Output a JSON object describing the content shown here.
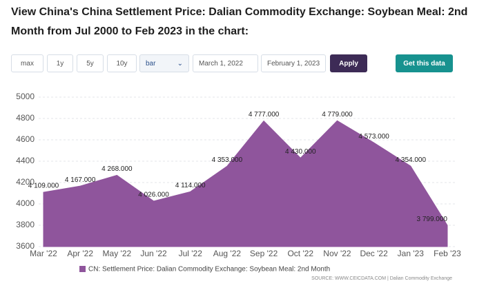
{
  "header": {
    "title": "View China's China Settlement Price: Dalian Commodity Exchange: Soybean Meal: 2nd Month from Jul 2000 to Feb 2023 in the chart:"
  },
  "controls": {
    "ranges": [
      "max",
      "1y",
      "5y",
      "10y"
    ],
    "chart_type": "bar",
    "start_date": "March 1, 2022",
    "end_date": "February 1, 2023",
    "apply": "Apply",
    "get_data": "Get this data"
  },
  "chart_data": {
    "type": "area",
    "categories": [
      "Mar '22",
      "Apr '22",
      "May '22",
      "Jun '22",
      "Jul '22",
      "Aug '22",
      "Sep '22",
      "Oct '22",
      "Nov '22",
      "Dec '22",
      "Jan '23",
      "Feb '23"
    ],
    "series": [
      {
        "name": "CN: Settlement Price: Dalian Commodity Exchange: Soybean Meal: 2nd Month",
        "color": "#8f559c",
        "values": [
          4109,
          4167,
          4268,
          4026,
          4114,
          4353,
          4777,
          4430,
          4779,
          4573,
          4354,
          3799
        ],
        "value_labels": [
          "4 109.000",
          "4 167.000",
          "4 268.000",
          "4 026.000",
          "4 114.000",
          "4 353.000",
          "4 777.000",
          "4 430.000",
          "4 779.000",
          "4 573.000",
          "4 354.000",
          "3 799.000"
        ]
      }
    ],
    "ylim": [
      3600,
      5000
    ],
    "yticks": [
      3600,
      3800,
      4000,
      4200,
      4400,
      4600,
      4800,
      5000
    ],
    "grid": true,
    "source": "SOURCE: WWW.CEICDATA.COM | Dalian Commodity Exchange"
  }
}
